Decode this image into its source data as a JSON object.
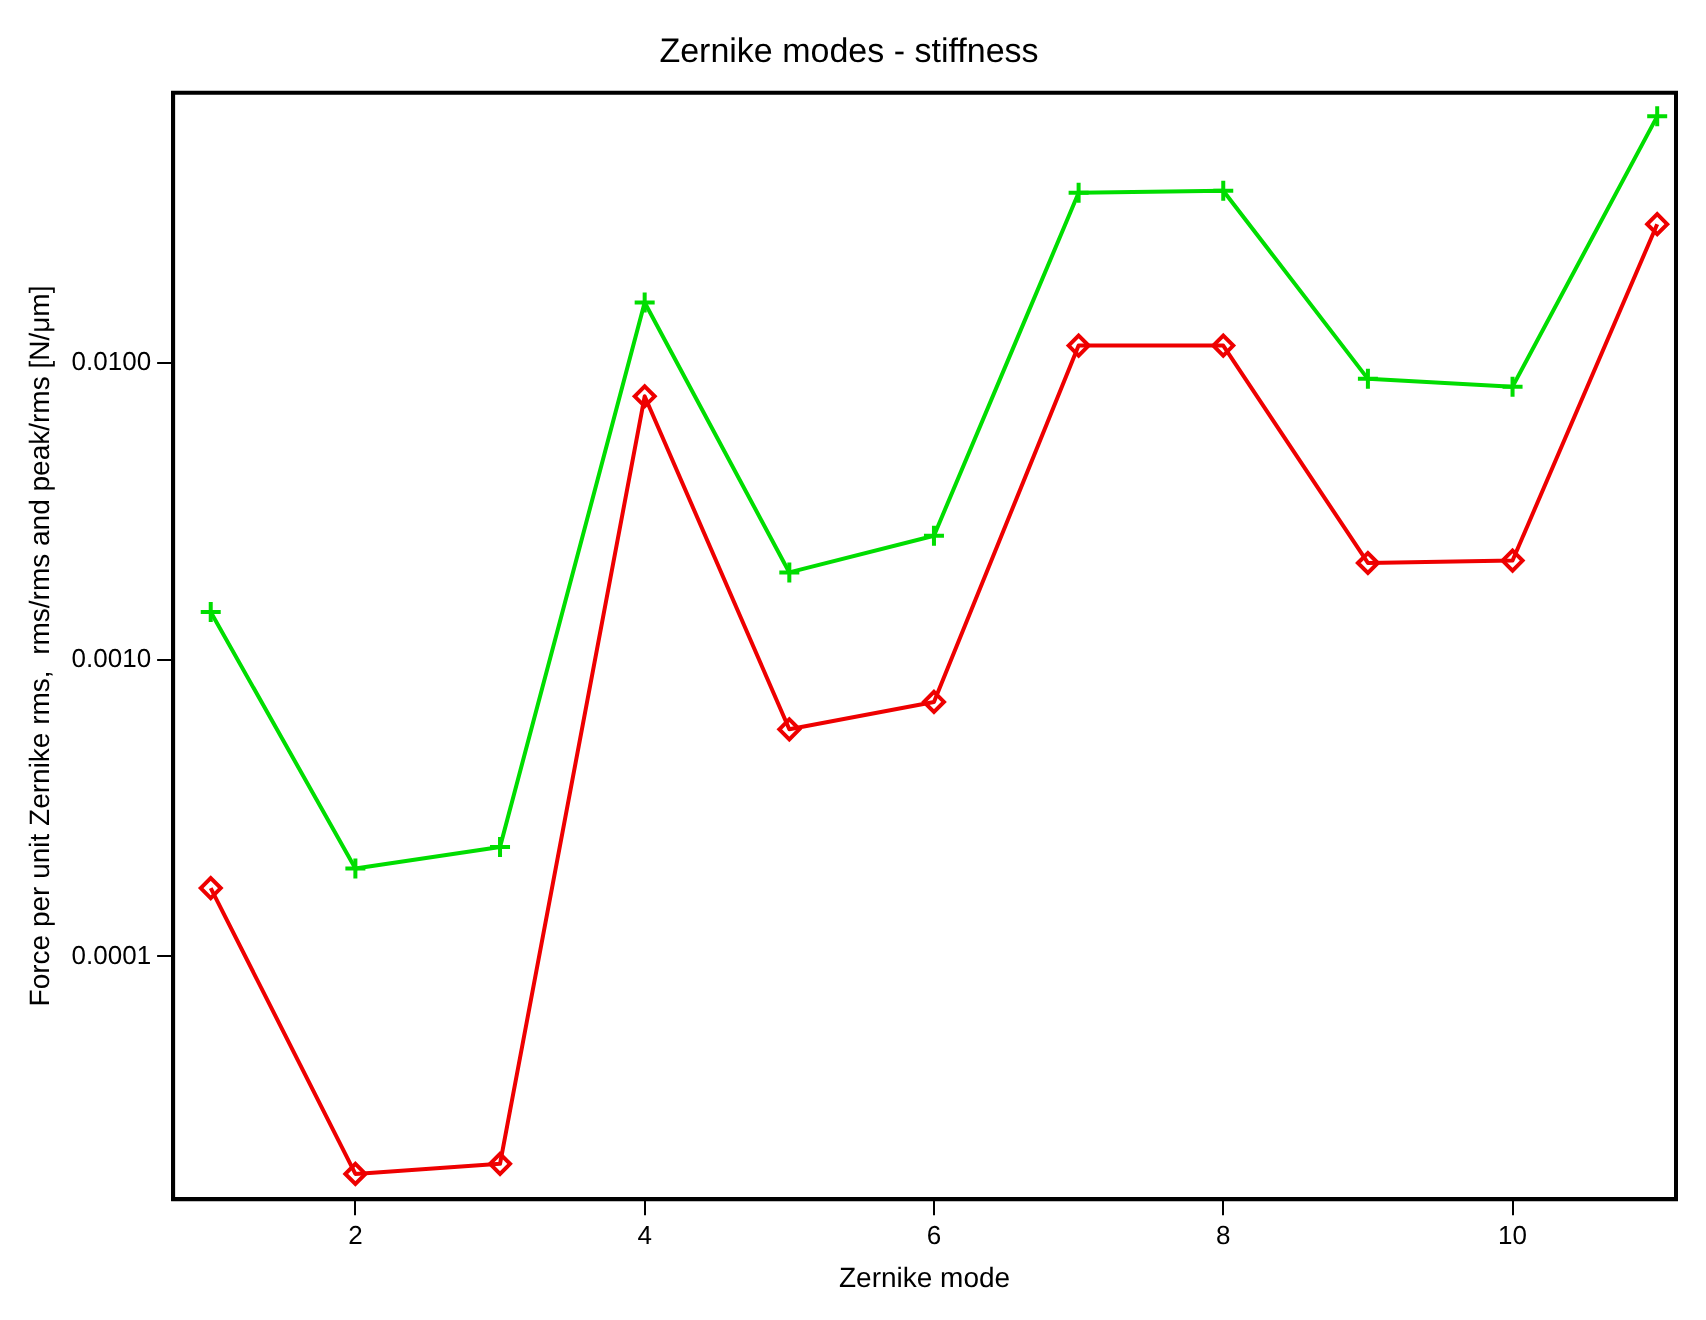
{
  "chart_data": {
    "type": "line",
    "title": "Zernike modes - stiffness",
    "xlabel": "Zernike mode",
    "ylabel": "Force per unit Zernike rms,  rms/rms and peak/rms [N/μm]",
    "x": [
      1,
      2,
      3,
      4,
      5,
      6,
      7,
      8,
      9,
      10,
      11
    ],
    "series": [
      {
        "color": "#00dd00",
        "marker": "cross",
        "values": [
          0.00145,
          0.000198,
          0.000234,
          0.016,
          0.00197,
          0.00262,
          0.0375,
          0.0381,
          0.00885,
          0.00833,
          0.0679
        ]
      },
      {
        "color": "#ee0000",
        "marker": "diamond",
        "values": [
          0.00017,
          1.85e-05,
          2e-05,
          0.00773,
          0.000583,
          0.000721,
          0.01146,
          0.01146,
          0.00212,
          0.00216,
          0.0294
        ]
      }
    ],
    "log": "y",
    "xlim": [
      0.74,
      11.13
    ],
    "ylim": [
      1.52e-05,
      0.0815
    ],
    "xticks": [
      2,
      4,
      6,
      8,
      10
    ],
    "yticks": [
      {
        "value": 0.0001,
        "label": "0.0001"
      },
      {
        "value": 0.001,
        "label": "0.0010"
      },
      {
        "value": 0.01,
        "label": "0.0100"
      }
    ],
    "grid": false,
    "legend": false
  }
}
